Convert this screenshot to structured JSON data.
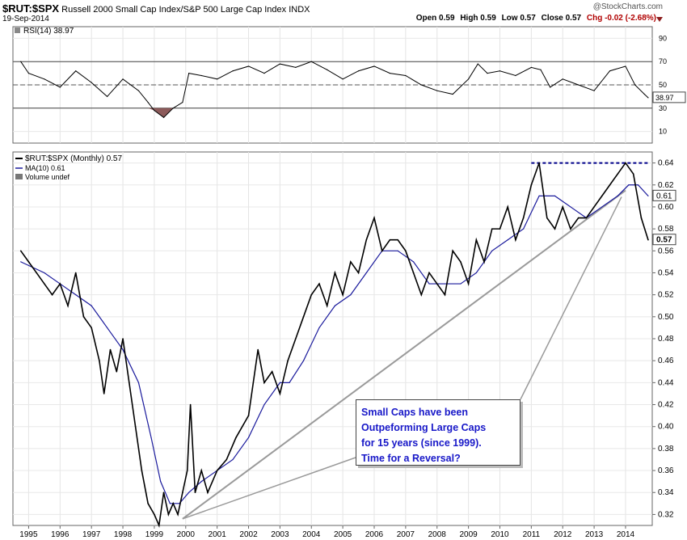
{
  "header": {
    "symbol": "$RUT:$SPX",
    "description": "Russell 2000 Small Cap Index/S&P 500 Large Cap Index",
    "exchange": "INDX",
    "date": "19-Sep-2014",
    "brand": "@StockCharts.com",
    "open": "Open 0.59",
    "high": "High 0.59",
    "low": "Low 0.57",
    "close": "Close 0.57",
    "change": "Chg -0.02 (-2.68%)"
  },
  "annotation": {
    "lines": [
      "Small Caps have been",
      "Outpeforming Large Caps",
      "for 15 years (since 1999).",
      "Time for a Reversal?"
    ]
  },
  "colors": {
    "price": "#000000",
    "ma": "#1a1a9c",
    "rsi_fill_low": "#8c5a5a",
    "resistance": "#00008b",
    "note_text": "#1818c8"
  },
  "chart_data": [
    {
      "type": "line",
      "title": "RSI(14) 38.97",
      "label": "RSI(14) 38.97",
      "ylim": [
        0,
        100
      ],
      "yticks": [
        "90",
        "70",
        "50",
        "30",
        "10"
      ],
      "ytick_values": [
        90,
        70,
        50,
        30,
        10
      ],
      "reference_lines": [
        70,
        50,
        30
      ],
      "last_value_tag": "38.97",
      "last_value": 38.97,
      "x": [
        1994.75,
        1995.0,
        1995.5,
        1996.0,
        1996.5,
        1997.0,
        1997.5,
        1998.0,
        1998.5,
        1998.8,
        1999.0,
        1999.3,
        1999.6,
        1999.9,
        2000.1,
        2000.5,
        2001.0,
        2001.5,
        2002.0,
        2002.5,
        2003.0,
        2003.5,
        2004.0,
        2004.5,
        2005.0,
        2005.5,
        2006.0,
        2006.5,
        2007.0,
        2007.5,
        2008.0,
        2008.5,
        2009.0,
        2009.3,
        2009.6,
        2010.0,
        2010.5,
        2011.0,
        2011.3,
        2011.6,
        2012.0,
        2012.5,
        2013.0,
        2013.5,
        2014.0,
        2014.3,
        2014.6,
        2014.72
      ],
      "values": [
        70,
        60,
        55,
        48,
        62,
        52,
        40,
        55,
        45,
        35,
        28,
        22,
        30,
        35,
        60,
        58,
        55,
        62,
        66,
        60,
        68,
        65,
        70,
        63,
        55,
        62,
        66,
        60,
        58,
        50,
        45,
        42,
        55,
        68,
        60,
        62,
        58,
        65,
        63,
        48,
        55,
        50,
        45,
        62,
        66,
        50,
        42,
        38.97
      ]
    },
    {
      "type": "line",
      "title": "$RUT:$SPX (Monthly) 0.57",
      "legend": [
        "$RUT:$SPX (Monthly) 0.57",
        "MA(10) 0.61",
        "Volume undef"
      ],
      "xlabel": "",
      "ylabel": "",
      "ylim": [
        0.31,
        0.65
      ],
      "xlim": [
        1994.5,
        2014.85
      ],
      "xticks": [
        "1995",
        "1996",
        "1997",
        "1998",
        "1999",
        "2000",
        "2001",
        "2002",
        "2003",
        "2004",
        "2005",
        "2006",
        "2007",
        "2008",
        "2009",
        "2010",
        "2011",
        "2012",
        "2013",
        "2014"
      ],
      "xtick_values": [
        1995,
        1996,
        1997,
        1998,
        1999,
        2000,
        2001,
        2002,
        2003,
        2004,
        2005,
        2006,
        2007,
        2008,
        2009,
        2010,
        2011,
        2012,
        2013,
        2014
      ],
      "yticks": [
        "0.64",
        "0.62",
        "0.60",
        "0.58",
        "0.56",
        "0.54",
        "0.52",
        "0.50",
        "0.48",
        "0.46",
        "0.44",
        "0.42",
        "0.40",
        "0.38",
        "0.36",
        "0.34",
        "0.32"
      ],
      "ytick_values": [
        0.64,
        0.62,
        0.6,
        0.58,
        0.56,
        0.54,
        0.52,
        0.5,
        0.48,
        0.46,
        0.44,
        0.42,
        0.4,
        0.38,
        0.36,
        0.34,
        0.32
      ],
      "price_tag": "0.57",
      "ma_tag": "0.61",
      "series": [
        {
          "name": "$RUT:$SPX (Monthly)",
          "x": [
            1994.75,
            1995.0,
            1995.25,
            1995.5,
            1995.75,
            1996.0,
            1996.25,
            1996.5,
            1996.75,
            1997.0,
            1997.25,
            1997.4,
            1997.6,
            1997.8,
            1998.0,
            1998.2,
            1998.4,
            1998.6,
            1998.8,
            1999.0,
            1999.15,
            1999.3,
            1999.45,
            1999.6,
            1999.75,
            1999.9,
            2000.05,
            2000.15,
            2000.3,
            2000.5,
            2000.7,
            2001.0,
            2001.3,
            2001.6,
            2002.0,
            2002.3,
            2002.5,
            2002.75,
            2003.0,
            2003.25,
            2003.5,
            2003.75,
            2004.0,
            2004.25,
            2004.5,
            2004.75,
            2005.0,
            2005.25,
            2005.5,
            2005.75,
            2006.0,
            2006.25,
            2006.5,
            2006.75,
            2007.0,
            2007.25,
            2007.5,
            2007.75,
            2008.0,
            2008.25,
            2008.5,
            2008.75,
            2009.0,
            2009.25,
            2009.5,
            2009.75,
            2010.0,
            2010.25,
            2010.5,
            2010.75,
            2011.0,
            2011.25,
            2011.5,
            2011.75,
            2012.0,
            2012.25,
            2012.5,
            2012.75,
            2013.0,
            2013.25,
            2013.5,
            2013.75,
            2014.0,
            2014.25,
            2014.5,
            2014.72
          ],
          "values": [
            0.56,
            0.55,
            0.54,
            0.53,
            0.52,
            0.53,
            0.51,
            0.54,
            0.5,
            0.49,
            0.46,
            0.43,
            0.47,
            0.45,
            0.48,
            0.44,
            0.4,
            0.36,
            0.33,
            0.32,
            0.31,
            0.34,
            0.32,
            0.33,
            0.32,
            0.34,
            0.36,
            0.42,
            0.34,
            0.36,
            0.34,
            0.36,
            0.37,
            0.39,
            0.41,
            0.47,
            0.44,
            0.45,
            0.43,
            0.46,
            0.48,
            0.5,
            0.52,
            0.53,
            0.51,
            0.54,
            0.52,
            0.55,
            0.54,
            0.57,
            0.59,
            0.56,
            0.57,
            0.57,
            0.56,
            0.54,
            0.52,
            0.54,
            0.53,
            0.52,
            0.56,
            0.55,
            0.53,
            0.57,
            0.55,
            0.58,
            0.58,
            0.6,
            0.57,
            0.59,
            0.62,
            0.64,
            0.59,
            0.58,
            0.6,
            0.58,
            0.59,
            0.59,
            0.6,
            0.61,
            0.62,
            0.63,
            0.64,
            0.63,
            0.59,
            0.57
          ]
        },
        {
          "name": "MA(10)",
          "x": [
            1994.75,
            1995.5,
            1996.0,
            1996.5,
            1997.0,
            1997.5,
            1998.0,
            1998.5,
            1998.9,
            1999.2,
            1999.5,
            1999.8,
            2000.1,
            2000.5,
            2001.0,
            2001.5,
            2002.0,
            2002.5,
            2003.0,
            2003.3,
            2003.75,
            2004.25,
            2004.75,
            2005.25,
            2005.75,
            2006.25,
            2006.75,
            2007.25,
            2007.75,
            2008.25,
            2008.75,
            2009.25,
            2009.75,
            2010.25,
            2010.75,
            2011.25,
            2011.75,
            2012.25,
            2012.75,
            2013.25,
            2013.75,
            2014.1,
            2014.4,
            2014.72
          ],
          "values": [
            0.55,
            0.54,
            0.53,
            0.52,
            0.51,
            0.49,
            0.47,
            0.44,
            0.39,
            0.35,
            0.33,
            0.33,
            0.34,
            0.35,
            0.36,
            0.37,
            0.39,
            0.42,
            0.44,
            0.44,
            0.46,
            0.49,
            0.51,
            0.52,
            0.54,
            0.56,
            0.56,
            0.55,
            0.53,
            0.53,
            0.53,
            0.54,
            0.56,
            0.57,
            0.58,
            0.61,
            0.61,
            0.6,
            0.59,
            0.6,
            0.61,
            0.62,
            0.62,
            0.61
          ]
        }
      ],
      "resistance_line": {
        "y": 0.64,
        "x_start": 2011.0,
        "x_end": 2014.72
      },
      "trendline": [
        [
          1999.9,
          0.316
        ],
        [
          2014.0,
          0.615
        ]
      ]
    }
  ]
}
